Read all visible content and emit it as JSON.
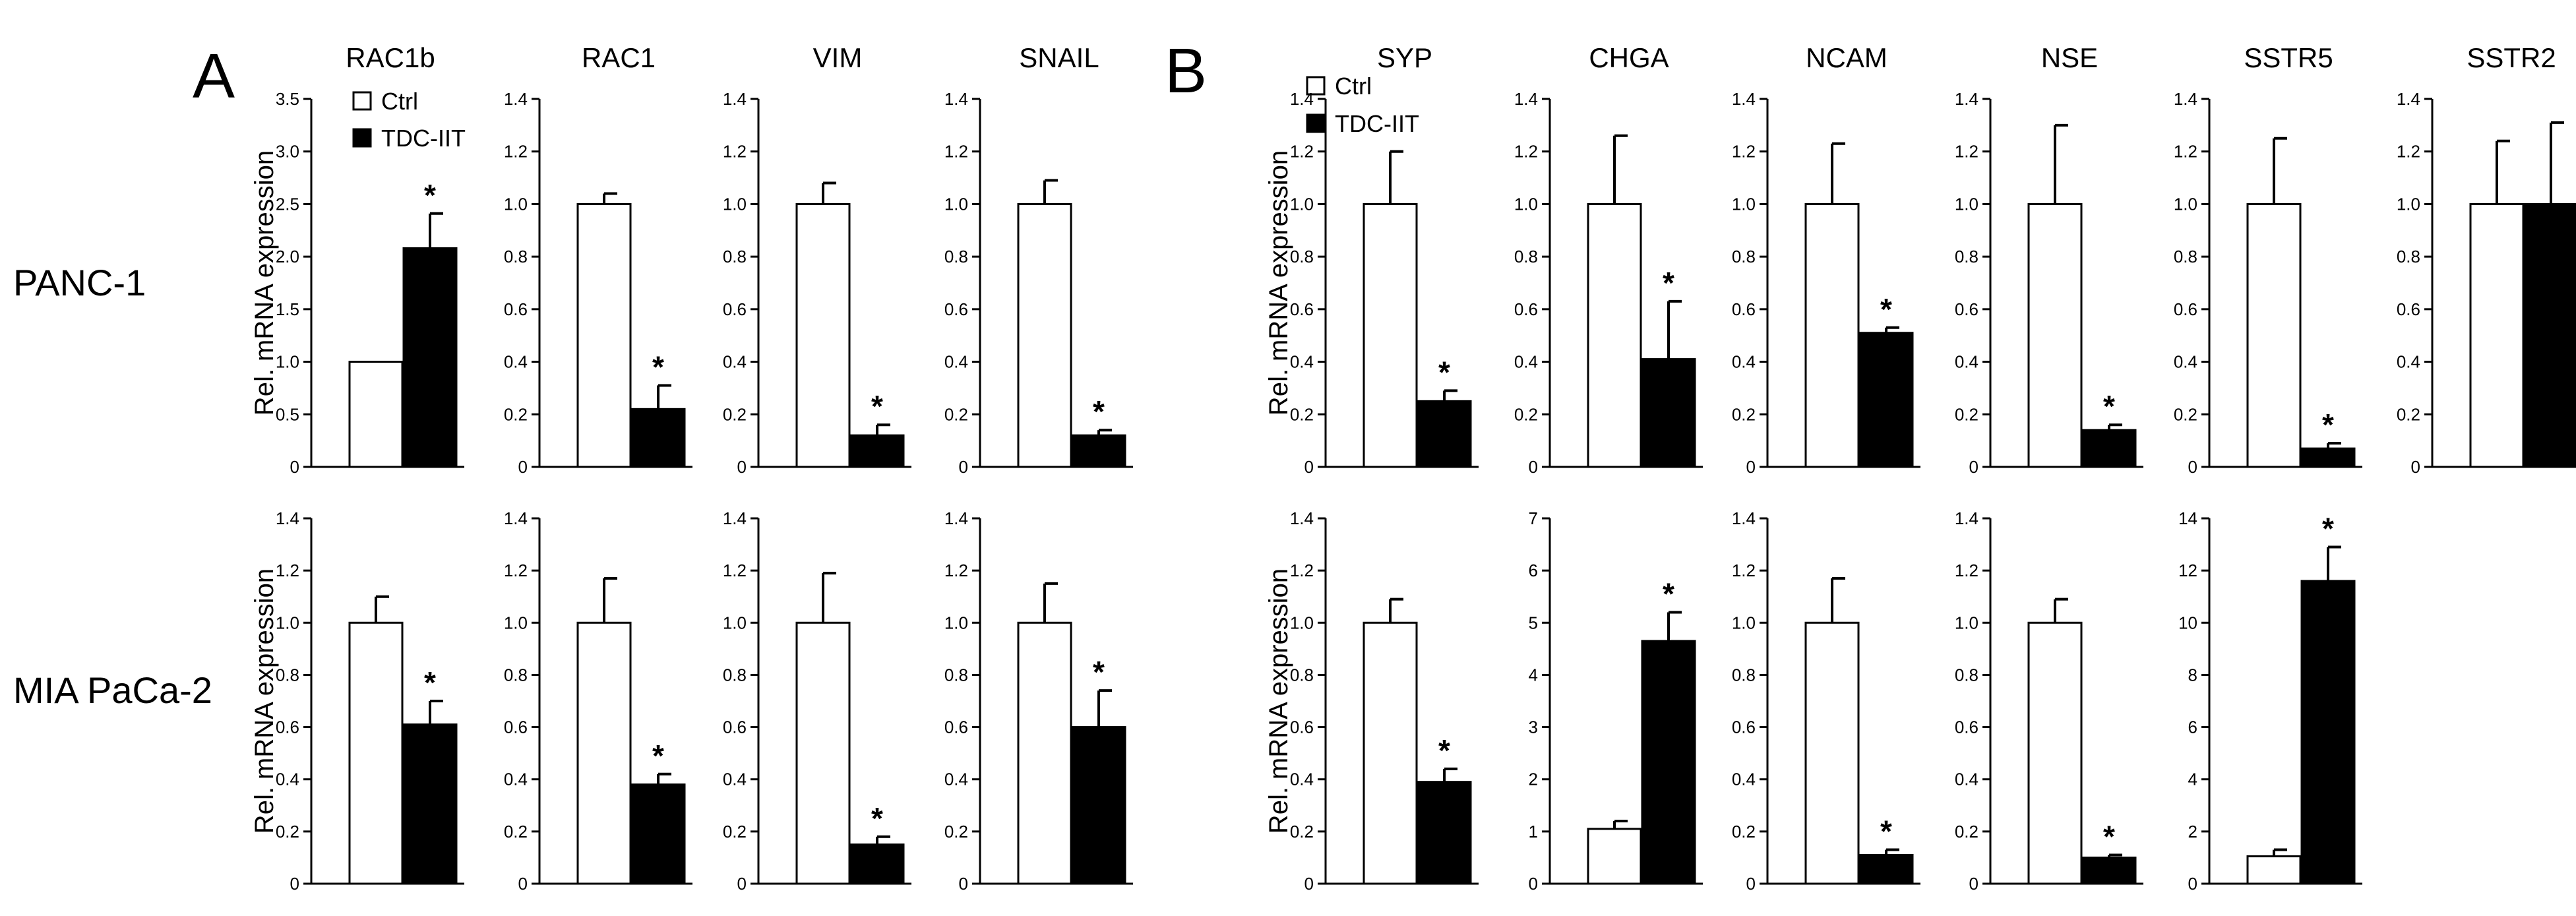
{
  "panels": [
    "A",
    "B"
  ],
  "row_labels": [
    "PANC-1",
    "MIA PaCa-2"
  ],
  "legend": {
    "ctrl": "Ctrl",
    "treated": "TDC-IIT"
  },
  "colors": {
    "ctrl_fill": "#ffffff",
    "treated_fill": "#000000",
    "stroke": "#000000"
  },
  "ylabel": "Rel. mRNA expression",
  "significance_marker": "*",
  "chart_data": [
    {
      "type": "bar",
      "panel": "A",
      "row": "PANC-1",
      "title": "RAC1b",
      "ylim": [
        0,
        3.5
      ],
      "ticks": [
        "0",
        "0.5",
        "1.0",
        "1.5",
        "2.0",
        "2.5",
        "3.0",
        "3.5"
      ],
      "series": [
        {
          "name": "Ctrl",
          "values": [
            1.0
          ],
          "error": [
            0
          ]
        },
        {
          "name": "TDC-IIT",
          "values": [
            2.08
          ],
          "error": [
            0.33
          ]
        }
      ],
      "significant": true,
      "ylabel": "Rel. mRNA expression"
    },
    {
      "type": "bar",
      "panel": "A",
      "row": "PANC-1",
      "title": "RAC1",
      "ylim": [
        0,
        1.4
      ],
      "ticks": [
        "0",
        "0.2",
        "0.4",
        "0.6",
        "0.8",
        "1.0",
        "1.2",
        "1.4"
      ],
      "series": [
        {
          "name": "Ctrl",
          "values": [
            1.0
          ],
          "error": [
            0.04
          ]
        },
        {
          "name": "TDC-IIT",
          "values": [
            0.22
          ],
          "error": [
            0.09
          ]
        }
      ],
      "significant": true,
      "ylabel": ""
    },
    {
      "type": "bar",
      "panel": "A",
      "row": "PANC-1",
      "title": "VIM",
      "ylim": [
        0,
        1.4
      ],
      "ticks": [
        "0",
        "0.2",
        "0.4",
        "0.6",
        "0.8",
        "1.0",
        "1.2",
        "1.4"
      ],
      "series": [
        {
          "name": "Ctrl",
          "values": [
            1.0
          ],
          "error": [
            0.08
          ]
        },
        {
          "name": "TDC-IIT",
          "values": [
            0.12
          ],
          "error": [
            0.04
          ]
        }
      ],
      "significant": true,
      "ylabel": ""
    },
    {
      "type": "bar",
      "panel": "A",
      "row": "PANC-1",
      "title": "SNAIL",
      "ylim": [
        0,
        1.4
      ],
      "ticks": [
        "0",
        "0.2",
        "0.4",
        "0.6",
        "0.8",
        "1.0",
        "1.2",
        "1.4"
      ],
      "series": [
        {
          "name": "Ctrl",
          "values": [
            1.0
          ],
          "error": [
            0.09
          ]
        },
        {
          "name": "TDC-IIT",
          "values": [
            0.12
          ],
          "error": [
            0.02
          ]
        }
      ],
      "significant": true,
      "ylabel": ""
    },
    {
      "type": "bar",
      "panel": "B",
      "row": "PANC-1",
      "title": "SYP",
      "ylim": [
        0,
        1.4
      ],
      "ticks": [
        "0",
        "0.2",
        "0.4",
        "0.6",
        "0.8",
        "1.0",
        "1.2",
        "1.4"
      ],
      "series": [
        {
          "name": "Ctrl",
          "values": [
            1.0
          ],
          "error": [
            0.2
          ]
        },
        {
          "name": "TDC-IIT",
          "values": [
            0.25
          ],
          "error": [
            0.04
          ]
        }
      ],
      "significant": true,
      "ylabel": "Rel. mRNA expression"
    },
    {
      "type": "bar",
      "panel": "B",
      "row": "PANC-1",
      "title": "CHGA",
      "ylim": [
        0,
        1.4
      ],
      "ticks": [
        "0",
        "0.2",
        "0.4",
        "0.6",
        "0.8",
        "1.0",
        "1.2",
        "1.4"
      ],
      "series": [
        {
          "name": "Ctrl",
          "values": [
            1.0
          ],
          "error": [
            0.26
          ]
        },
        {
          "name": "TDC-IIT",
          "values": [
            0.41
          ],
          "error": [
            0.22
          ]
        }
      ],
      "significant": true,
      "ylabel": ""
    },
    {
      "type": "bar",
      "panel": "B",
      "row": "PANC-1",
      "title": "NCAM",
      "ylim": [
        0,
        1.4
      ],
      "ticks": [
        "0",
        "0.2",
        "0.4",
        "0.6",
        "0.8",
        "1.0",
        "1.2",
        "1.4"
      ],
      "series": [
        {
          "name": "Ctrl",
          "values": [
            1.0
          ],
          "error": [
            0.23
          ]
        },
        {
          "name": "TDC-IIT",
          "values": [
            0.51
          ],
          "error": [
            0.02
          ]
        }
      ],
      "significant": true,
      "ylabel": ""
    },
    {
      "type": "bar",
      "panel": "B",
      "row": "PANC-1",
      "title": "NSE",
      "ylim": [
        0,
        1.4
      ],
      "ticks": [
        "0",
        "0.2",
        "0.4",
        "0.6",
        "0.8",
        "1.0",
        "1.2",
        "1.4"
      ],
      "series": [
        {
          "name": "Ctrl",
          "values": [
            1.0
          ],
          "error": [
            0.3
          ]
        },
        {
          "name": "TDC-IIT",
          "values": [
            0.14
          ],
          "error": [
            0.02
          ]
        }
      ],
      "significant": true,
      "ylabel": ""
    },
    {
      "type": "bar",
      "panel": "B",
      "row": "PANC-1",
      "title": "SSTR5",
      "ylim": [
        0,
        1.4
      ],
      "ticks": [
        "0",
        "0.2",
        "0.4",
        "0.6",
        "0.8",
        "1.0",
        "1.2",
        "1.4"
      ],
      "series": [
        {
          "name": "Ctrl",
          "values": [
            1.0
          ],
          "error": [
            0.25
          ]
        },
        {
          "name": "TDC-IIT",
          "values": [
            0.07
          ],
          "error": [
            0.02
          ]
        }
      ],
      "significant": true,
      "ylabel": ""
    },
    {
      "type": "bar",
      "panel": "B",
      "row": "PANC-1",
      "title": "SSTR2",
      "ylim": [
        0,
        1.4
      ],
      "ticks": [
        "0",
        "0.2",
        "0.4",
        "0.6",
        "0.8",
        "1.0",
        "1.2",
        "1.4"
      ],
      "series": [
        {
          "name": "Ctrl",
          "values": [
            1.0
          ],
          "error": [
            0.24
          ]
        },
        {
          "name": "TDC-IIT",
          "values": [
            1.0
          ],
          "error": [
            0.31
          ]
        }
      ],
      "significant": false,
      "ylabel": ""
    },
    {
      "type": "bar",
      "panel": "A",
      "row": "MIA PaCa-2",
      "title": "",
      "ylim": [
        0,
        1.4
      ],
      "ticks": [
        "0",
        "0.2",
        "0.4",
        "0.6",
        "0.8",
        "1.0",
        "1.2",
        "1.4"
      ],
      "series": [
        {
          "name": "Ctrl",
          "values": [
            1.0
          ],
          "error": [
            0.1
          ]
        },
        {
          "name": "TDC-IIT",
          "values": [
            0.61
          ],
          "error": [
            0.09
          ]
        }
      ],
      "significant": true,
      "ylabel": "Rel. mRNA expression"
    },
    {
      "type": "bar",
      "panel": "A",
      "row": "MIA PaCa-2",
      "title": "",
      "ylim": [
        0,
        1.4
      ],
      "ticks": [
        "0",
        "0.2",
        "0.4",
        "0.6",
        "0.8",
        "1.0",
        "1.2",
        "1.4"
      ],
      "series": [
        {
          "name": "Ctrl",
          "values": [
            1.0
          ],
          "error": [
            0.17
          ]
        },
        {
          "name": "TDC-IIT",
          "values": [
            0.38
          ],
          "error": [
            0.04
          ]
        }
      ],
      "significant": true,
      "ylabel": ""
    },
    {
      "type": "bar",
      "panel": "A",
      "row": "MIA PaCa-2",
      "title": "",
      "ylim": [
        0,
        1.4
      ],
      "ticks": [
        "0",
        "0.2",
        "0.4",
        "0.6",
        "0.8",
        "1.0",
        "1.2",
        "1.4"
      ],
      "series": [
        {
          "name": "Ctrl",
          "values": [
            1.0
          ],
          "error": [
            0.19
          ]
        },
        {
          "name": "TDC-IIT",
          "values": [
            0.15
          ],
          "error": [
            0.03
          ]
        }
      ],
      "significant": true,
      "ylabel": ""
    },
    {
      "type": "bar",
      "panel": "A",
      "row": "MIA PaCa-2",
      "title": "",
      "ylim": [
        0,
        1.4
      ],
      "ticks": [
        "0",
        "0.2",
        "0.4",
        "0.6",
        "0.8",
        "1.0",
        "1.2",
        "1.4"
      ],
      "series": [
        {
          "name": "Ctrl",
          "values": [
            1.0
          ],
          "error": [
            0.15
          ]
        },
        {
          "name": "TDC-IIT",
          "values": [
            0.6
          ],
          "error": [
            0.14
          ]
        }
      ],
      "significant": true,
      "ylabel": ""
    },
    {
      "type": "bar",
      "panel": "B",
      "row": "MIA PaCa-2",
      "title": "",
      "ylim": [
        0,
        1.4
      ],
      "ticks": [
        "0",
        "0.2",
        "0.4",
        "0.6",
        "0.8",
        "1.0",
        "1.2",
        "1.4"
      ],
      "series": [
        {
          "name": "Ctrl",
          "values": [
            1.0
          ],
          "error": [
            0.09
          ]
        },
        {
          "name": "TDC-IIT",
          "values": [
            0.39
          ],
          "error": [
            0.05
          ]
        }
      ],
      "significant": true,
      "ylabel": "Rel. mRNA expression"
    },
    {
      "type": "bar",
      "panel": "B",
      "row": "MIA PaCa-2",
      "title": "",
      "ylim": [
        0,
        7
      ],
      "ticks": [
        "0",
        "1",
        "2",
        "3",
        "4",
        "5",
        "6",
        "7"
      ],
      "series": [
        {
          "name": "Ctrl",
          "values": [
            1.05
          ],
          "error": [
            0.15
          ]
        },
        {
          "name": "TDC-IIT",
          "values": [
            4.65
          ],
          "error": [
            0.55
          ]
        }
      ],
      "significant": true,
      "ylabel": ""
    },
    {
      "type": "bar",
      "panel": "B",
      "row": "MIA PaCa-2",
      "title": "",
      "ylim": [
        0,
        1.4
      ],
      "ticks": [
        "0",
        "0.2",
        "0.4",
        "0.6",
        "0.8",
        "1.0",
        "1.2",
        "1.4"
      ],
      "series": [
        {
          "name": "Ctrl",
          "values": [
            1.0
          ],
          "error": [
            0.17
          ]
        },
        {
          "name": "TDC-IIT",
          "values": [
            0.11
          ],
          "error": [
            0.02
          ]
        }
      ],
      "significant": true,
      "ylabel": ""
    },
    {
      "type": "bar",
      "panel": "B",
      "row": "MIA PaCa-2",
      "title": "",
      "ylim": [
        0,
        1.4
      ],
      "ticks": [
        "0",
        "0.2",
        "0.4",
        "0.6",
        "0.8",
        "1.0",
        "1.2",
        "1.4"
      ],
      "series": [
        {
          "name": "Ctrl",
          "values": [
            1.0
          ],
          "error": [
            0.09
          ]
        },
        {
          "name": "TDC-IIT",
          "values": [
            0.1
          ],
          "error": [
            0.01
          ]
        }
      ],
      "significant": true,
      "ylabel": ""
    },
    {
      "type": "bar",
      "panel": "B",
      "row": "MIA PaCa-2",
      "title": "",
      "ylim": [
        0,
        14
      ],
      "ticks": [
        "0",
        "2",
        "4",
        "6",
        "8",
        "10",
        "12",
        "14"
      ],
      "series": [
        {
          "name": "Ctrl",
          "values": [
            1.05
          ],
          "error": [
            0.25
          ]
        },
        {
          "name": "TDC-IIT",
          "values": [
            11.6
          ],
          "error": [
            1.3
          ]
        }
      ],
      "significant": true,
      "ylabel": ""
    }
  ]
}
